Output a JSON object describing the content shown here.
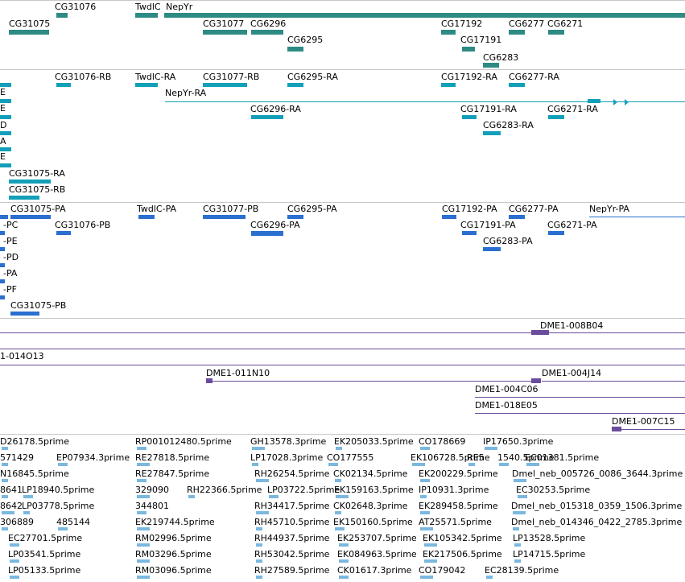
{
  "colors": {
    "gene": "#2e8b84",
    "transcript": "#12a0b8",
    "protein": "#2b6fd0",
    "clone": "#6a4c9c",
    "est": "#7ab8e0",
    "separator": "#c8c8c8"
  },
  "tracks": {
    "genes": {
      "labels": [
        "CG31076",
        "TwdlC",
        "NepYr",
        "CG31075",
        "CG31077",
        "CG6296",
        "CG17192",
        "CG6277",
        "CG6271",
        "CG6295",
        "CG17191",
        "CG6283"
      ]
    },
    "transcripts": {
      "labels": [
        "CG31076-RB",
        "TwdlC-RA",
        "CG31077-RB",
        "CG6295-RA",
        "CG17192-RA",
        "CG6277-RA",
        "NepYr-RA",
        "CG6296-RA",
        "CG17191-RA",
        "CG6271-RA",
        "CG6283-RA",
        "E",
        "E",
        "D",
        "A",
        "E",
        "CG31075-RA",
        "CG31075-RB"
      ]
    },
    "proteins": {
      "labels": [
        "CG31075-PA",
        "TwdlC-PA",
        "CG31077-PB",
        "CG6295-PA",
        "CG17192-PA",
        "CG6277-PA",
        "NepYr-PA",
        "-PC",
        "CG31076-PB",
        "CG6296-PA",
        "CG17191-PA",
        "CG6271-PA",
        "-PE",
        "CG6283-PA",
        "-PD",
        "-PA",
        "-PF",
        "CG31075-PB"
      ]
    },
    "clones": {
      "labels": [
        "DME1-008B04",
        "1-014O13",
        "DME1-011N10",
        "DME1-004J14",
        "DME1-004C06",
        "DME1-018E05",
        "DME1-007C15"
      ]
    },
    "ests": {
      "labels": [
        "D26178.5prime",
        "RP001012480.5prime",
        "GH13578.3prime",
        "EK205033.5prime",
        "CO178669",
        "IP17650.3prime",
        "571429",
        "EP07934.3prime",
        "RE27818.5prime",
        "LP17028.3prime",
        "CO177555",
        "EK106728.5prime",
        "RE5",
        "1540.5prime",
        "EC01381.5prime",
        "N16845.5prime",
        "RE27847.5prime",
        "RH26254.5prime",
        "CK02134.5prime",
        "EK200229.5prime",
        "Dmel_neb_005726_0086_3644.3prime",
        "8641",
        "LP18940.5prime",
        "329090",
        "RH22366.5prime",
        "LP03722.5prime",
        "EK159163.5prime",
        "IP10931.3prime",
        "EC30253.5prime",
        "8642",
        "LP03778.5prime",
        "344801",
        "RH34417.5prime",
        "CK02648.3prime",
        "EK289458.5prime",
        "Dmel_neb_015318_0359_1506.3prime",
        "306889",
        "485144",
        "EK219744.5prime",
        "RH45710.5prime",
        "EK150160.5prime",
        "AT25571.5prime",
        "Dmel_neb_014346_0422_2785.3prime",
        "EC27701.5prime",
        "RM02996.5prime",
        "RH44937.5prime",
        "EK253707.5prime",
        "EK105342.5prime",
        "LP13528.5prime",
        "LP03541.5prime",
        "RM03296.5prime",
        "RH53042.5prime",
        "EK084963.5prime",
        "EK217506.5prime",
        "LP14715.5prime",
        "LP05133.5prime",
        "RM03096.5prime",
        "RH27589.5prime",
        "CK01617.3prime",
        "CO179042",
        "EC28139.5prime"
      ]
    }
  }
}
